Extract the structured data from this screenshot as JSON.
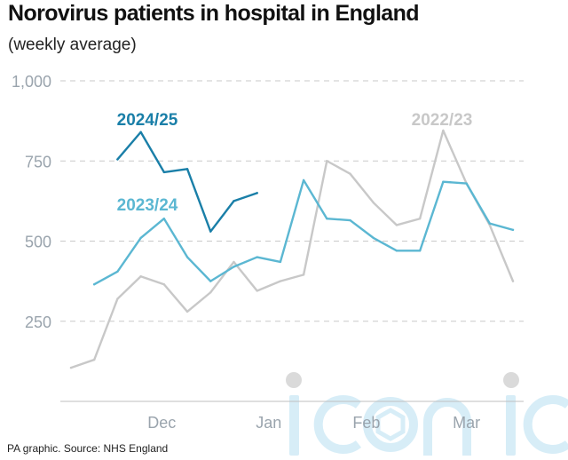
{
  "title": "Norovirus patients in hospital in England",
  "subtitle": "(weekly average)",
  "source": "PA graphic. Source: NHS England",
  "watermark": "iconic",
  "chart_data": {
    "type": "line",
    "ylim": [
      0,
      1000
    ],
    "yticks": [
      {
        "value": 250,
        "label": "250"
      },
      {
        "value": 500,
        "label": "500"
      },
      {
        "value": 750,
        "label": "750"
      },
      {
        "value": 1000,
        "label": "1,000"
      }
    ],
    "xlim": [
      0,
      20
    ],
    "xticks": [
      {
        "value": 3.9,
        "label": "Dec"
      },
      {
        "value": 8.5,
        "label": "Jan"
      },
      {
        "value": 12.7,
        "label": "Feb"
      },
      {
        "value": 17.0,
        "label": "Mar"
      }
    ],
    "grid": true,
    "series": [
      {
        "name": "2022/23",
        "color": "#c8c8c8",
        "x": [
          0,
          1,
          2,
          3,
          4,
          5,
          6,
          7,
          8,
          9,
          10,
          11,
          12,
          13,
          14,
          15,
          16,
          17,
          18,
          19
        ],
        "values": [
          105,
          130,
          320,
          390,
          365,
          280,
          340,
          435,
          345,
          375,
          395,
          750,
          710,
          620,
          550,
          570,
          845,
          680,
          550,
          375
        ]
      },
      {
        "name": "2023/24",
        "color": "#5bb7d2",
        "x": [
          1,
          2,
          3,
          4,
          5,
          6,
          7,
          8,
          9,
          10,
          11,
          12,
          13,
          14,
          15,
          16,
          17,
          18,
          19
        ],
        "values": [
          365,
          405,
          510,
          570,
          450,
          375,
          420,
          450,
          435,
          690,
          570,
          565,
          510,
          470,
          470,
          685,
          680,
          555,
          535
        ]
      },
      {
        "name": "2024/25",
        "color": "#1a7fa8",
        "x": [
          2,
          3,
          4,
          5,
          6,
          7,
          8
        ],
        "values": [
          755,
          840,
          715,
          725,
          530,
          625,
          650
        ]
      }
    ]
  }
}
